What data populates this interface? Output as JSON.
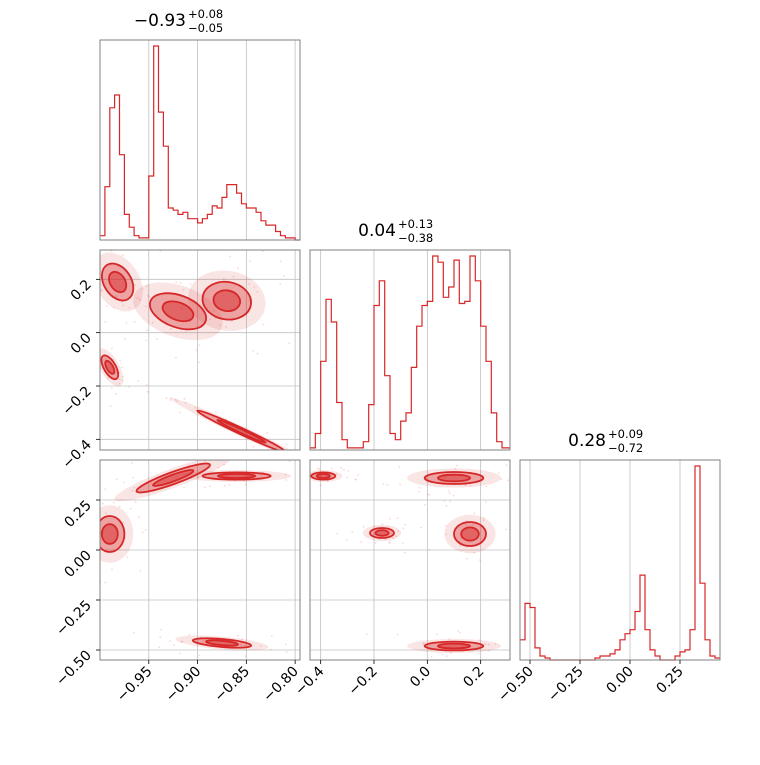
{
  "chart_data": {
    "type": "corner",
    "series_color": "#d62728",
    "grid": true,
    "parameters": [
      {
        "title": {
          "median": "−0.93",
          "plus": "+0.08",
          "minus": "−0.05"
        },
        "range": [
          -1.0,
          -0.795
        ],
        "ticks": [
          -0.95,
          -0.9,
          -0.85,
          -0.8
        ],
        "tick_labels": [
          "−0.95",
          "−0.90",
          "−0.85",
          "−0.80"
        ],
        "hist": {
          "edges": [
            -1.0,
            -0.995,
            -0.99,
            -0.985,
            -0.98,
            -0.975,
            -0.97,
            -0.965,
            -0.96,
            -0.955,
            -0.95,
            -0.945,
            -0.94,
            -0.935,
            -0.93,
            -0.925,
            -0.92,
            -0.915,
            -0.91,
            -0.905,
            -0.9,
            -0.895,
            -0.89,
            -0.885,
            -0.88,
            -0.875,
            -0.87,
            -0.865,
            -0.86,
            -0.855,
            -0.85,
            -0.845,
            -0.84,
            -0.835,
            -0.83,
            -0.825,
            -0.82,
            -0.815,
            -0.81,
            -0.805,
            -0.8,
            -0.795
          ],
          "counts": [
            0.02,
            0.25,
            0.62,
            0.68,
            0.4,
            0.12,
            0.06,
            0.02,
            0.01,
            0.01,
            0.3,
            0.91,
            0.6,
            0.44,
            0.15,
            0.14,
            0.12,
            0.13,
            0.1,
            0.1,
            0.08,
            0.1,
            0.12,
            0.16,
            0.15,
            0.2,
            0.26,
            0.26,
            0.22,
            0.17,
            0.15,
            0.15,
            0.13,
            0.09,
            0.07,
            0.07,
            0.04,
            0.02,
            0.01,
            0.01,
            0.0
          ]
        }
      },
      {
        "title": {
          "median": "0.04",
          "plus": "+0.13",
          "minus": "−0.38"
        },
        "range": [
          -0.44,
          0.31
        ],
        "ticks": [
          -0.4,
          -0.2,
          0.0,
          0.2
        ],
        "tick_labels": [
          "−0.4",
          "−0.2",
          "0.0",
          "0.2"
        ],
        "hist": {
          "edges": [
            -0.44,
            -0.42,
            -0.4,
            -0.38,
            -0.36,
            -0.34,
            -0.32,
            -0.3,
            -0.28,
            -0.26,
            -0.24,
            -0.22,
            -0.2,
            -0.18,
            -0.16,
            -0.14,
            -0.12,
            -0.1,
            -0.08,
            -0.06,
            -0.04,
            -0.02,
            0.0,
            0.02,
            0.04,
            0.06,
            0.08,
            0.1,
            0.12,
            0.14,
            0.16,
            0.18,
            0.2,
            0.22,
            0.24,
            0.26,
            0.28,
            0.3,
            0.31
          ],
          "counts": [
            0.01,
            0.08,
            0.43,
            0.73,
            0.62,
            0.23,
            0.05,
            0.01,
            0.01,
            0.01,
            0.04,
            0.22,
            0.7,
            0.82,
            0.36,
            0.08,
            0.05,
            0.14,
            0.18,
            0.4,
            0.6,
            0.7,
            0.72,
            0.94,
            0.91,
            0.74,
            0.79,
            0.92,
            0.71,
            0.72,
            0.94,
            0.82,
            0.6,
            0.43,
            0.18,
            0.04,
            0.01,
            0.01
          ]
        }
      },
      {
        "title": {
          "median": "0.28",
          "plus": "+0.09",
          "minus": "−0.72"
        },
        "range": [
          -0.55,
          0.45
        ],
        "ticks": [
          -0.5,
          -0.25,
          0.0,
          0.25
        ],
        "tick_labels": [
          "−0.50",
          "−0.25",
          "0.00",
          "0.25"
        ],
        "hist": {
          "edges": [
            -0.55,
            -0.525,
            -0.5,
            -0.475,
            -0.45,
            -0.425,
            -0.4,
            -0.375,
            -0.35,
            -0.325,
            -0.3,
            -0.275,
            -0.25,
            -0.225,
            -0.2,
            -0.175,
            -0.15,
            -0.125,
            -0.1,
            -0.075,
            -0.05,
            -0.025,
            0.0,
            0.025,
            0.05,
            0.075,
            0.1,
            0.125,
            0.15,
            0.175,
            0.2,
            0.225,
            0.25,
            0.275,
            0.3,
            0.325,
            0.35,
            0.375,
            0.4,
            0.425,
            0.45
          ],
          "counts": [
            0.1,
            0.28,
            0.26,
            0.06,
            0.02,
            0.01,
            0.0,
            0.0,
            0.0,
            0.0,
            0.0,
            0.0,
            0.0,
            0.0,
            0.0,
            0.01,
            0.02,
            0.02,
            0.03,
            0.05,
            0.1,
            0.13,
            0.15,
            0.24,
            0.42,
            0.15,
            0.05,
            0.02,
            0.0,
            0.0,
            0.0,
            0.02,
            0.04,
            0.05,
            0.15,
            0.96,
            0.38,
            0.1,
            0.02,
            0.01
          ]
        }
      }
    ],
    "y_ticks": {
      "row1": {
        "ticks": [
          0.2,
          0.0,
          -0.2,
          -0.4
        ],
        "tick_labels": [
          "0.2",
          "0.0",
          "−0.2",
          "−0.4"
        ]
      },
      "row2": {
        "ticks": [
          0.25,
          0.0,
          -0.25,
          -0.5
        ],
        "tick_labels": [
          "0.25",
          "0.00",
          "−0.25",
          "−0.50"
        ]
      }
    },
    "contours": {
      "p1_vs_p0": [
        {
          "name": "cluster-1",
          "cx": -0.982,
          "cy": 0.19,
          "sx": 0.014,
          "sy": 0.075,
          "angle": -32
        },
        {
          "name": "cluster-2",
          "cx": -0.92,
          "cy": 0.08,
          "sx": 0.03,
          "sy": 0.06,
          "angle": 20
        },
        {
          "name": "cluster-3",
          "cx": -0.87,
          "cy": 0.12,
          "sx": 0.025,
          "sy": 0.07,
          "angle": 10
        },
        {
          "name": "cluster-4",
          "cx": -0.99,
          "cy": -0.13,
          "sx": 0.006,
          "sy": 0.05,
          "angle": -30
        },
        {
          "name": "cluster-5",
          "cx": -0.855,
          "cy": -0.37,
          "sx": 0.05,
          "sy": 0.012,
          "angle": 25
        }
      ],
      "p2_vs_p0": [
        {
          "name": "cluster-1",
          "cx": -0.99,
          "cy": 0.08,
          "sx": 0.015,
          "sy": 0.09,
          "angle": 0
        },
        {
          "name": "cluster-2",
          "cx": -0.925,
          "cy": 0.36,
          "sx": 0.04,
          "sy": 0.03,
          "angle": -20
        },
        {
          "name": "cluster-3",
          "cx": -0.86,
          "cy": 0.37,
          "sx": 0.035,
          "sy": 0.018,
          "angle": 0
        },
        {
          "name": "cluster-4",
          "cx": -0.875,
          "cy": -0.465,
          "sx": 0.03,
          "sy": 0.02,
          "angle": 5
        }
      ],
      "p2_vs_p1": [
        {
          "name": "cluster-1",
          "cx": -0.39,
          "cy": 0.37,
          "sx": 0.045,
          "sy": 0.018,
          "angle": 0
        },
        {
          "name": "cluster-2",
          "cx": 0.1,
          "cy": 0.36,
          "sx": 0.11,
          "sy": 0.03,
          "angle": 0
        },
        {
          "name": "cluster-3",
          "cx": -0.17,
          "cy": 0.085,
          "sx": 0.045,
          "sy": 0.025,
          "angle": 0
        },
        {
          "name": "cluster-4",
          "cx": 0.16,
          "cy": 0.08,
          "sx": 0.06,
          "sy": 0.06,
          "angle": 0
        },
        {
          "name": "cluster-5",
          "cx": 0.1,
          "cy": -0.48,
          "sx": 0.11,
          "sy": 0.022,
          "angle": 0
        }
      ]
    }
  }
}
